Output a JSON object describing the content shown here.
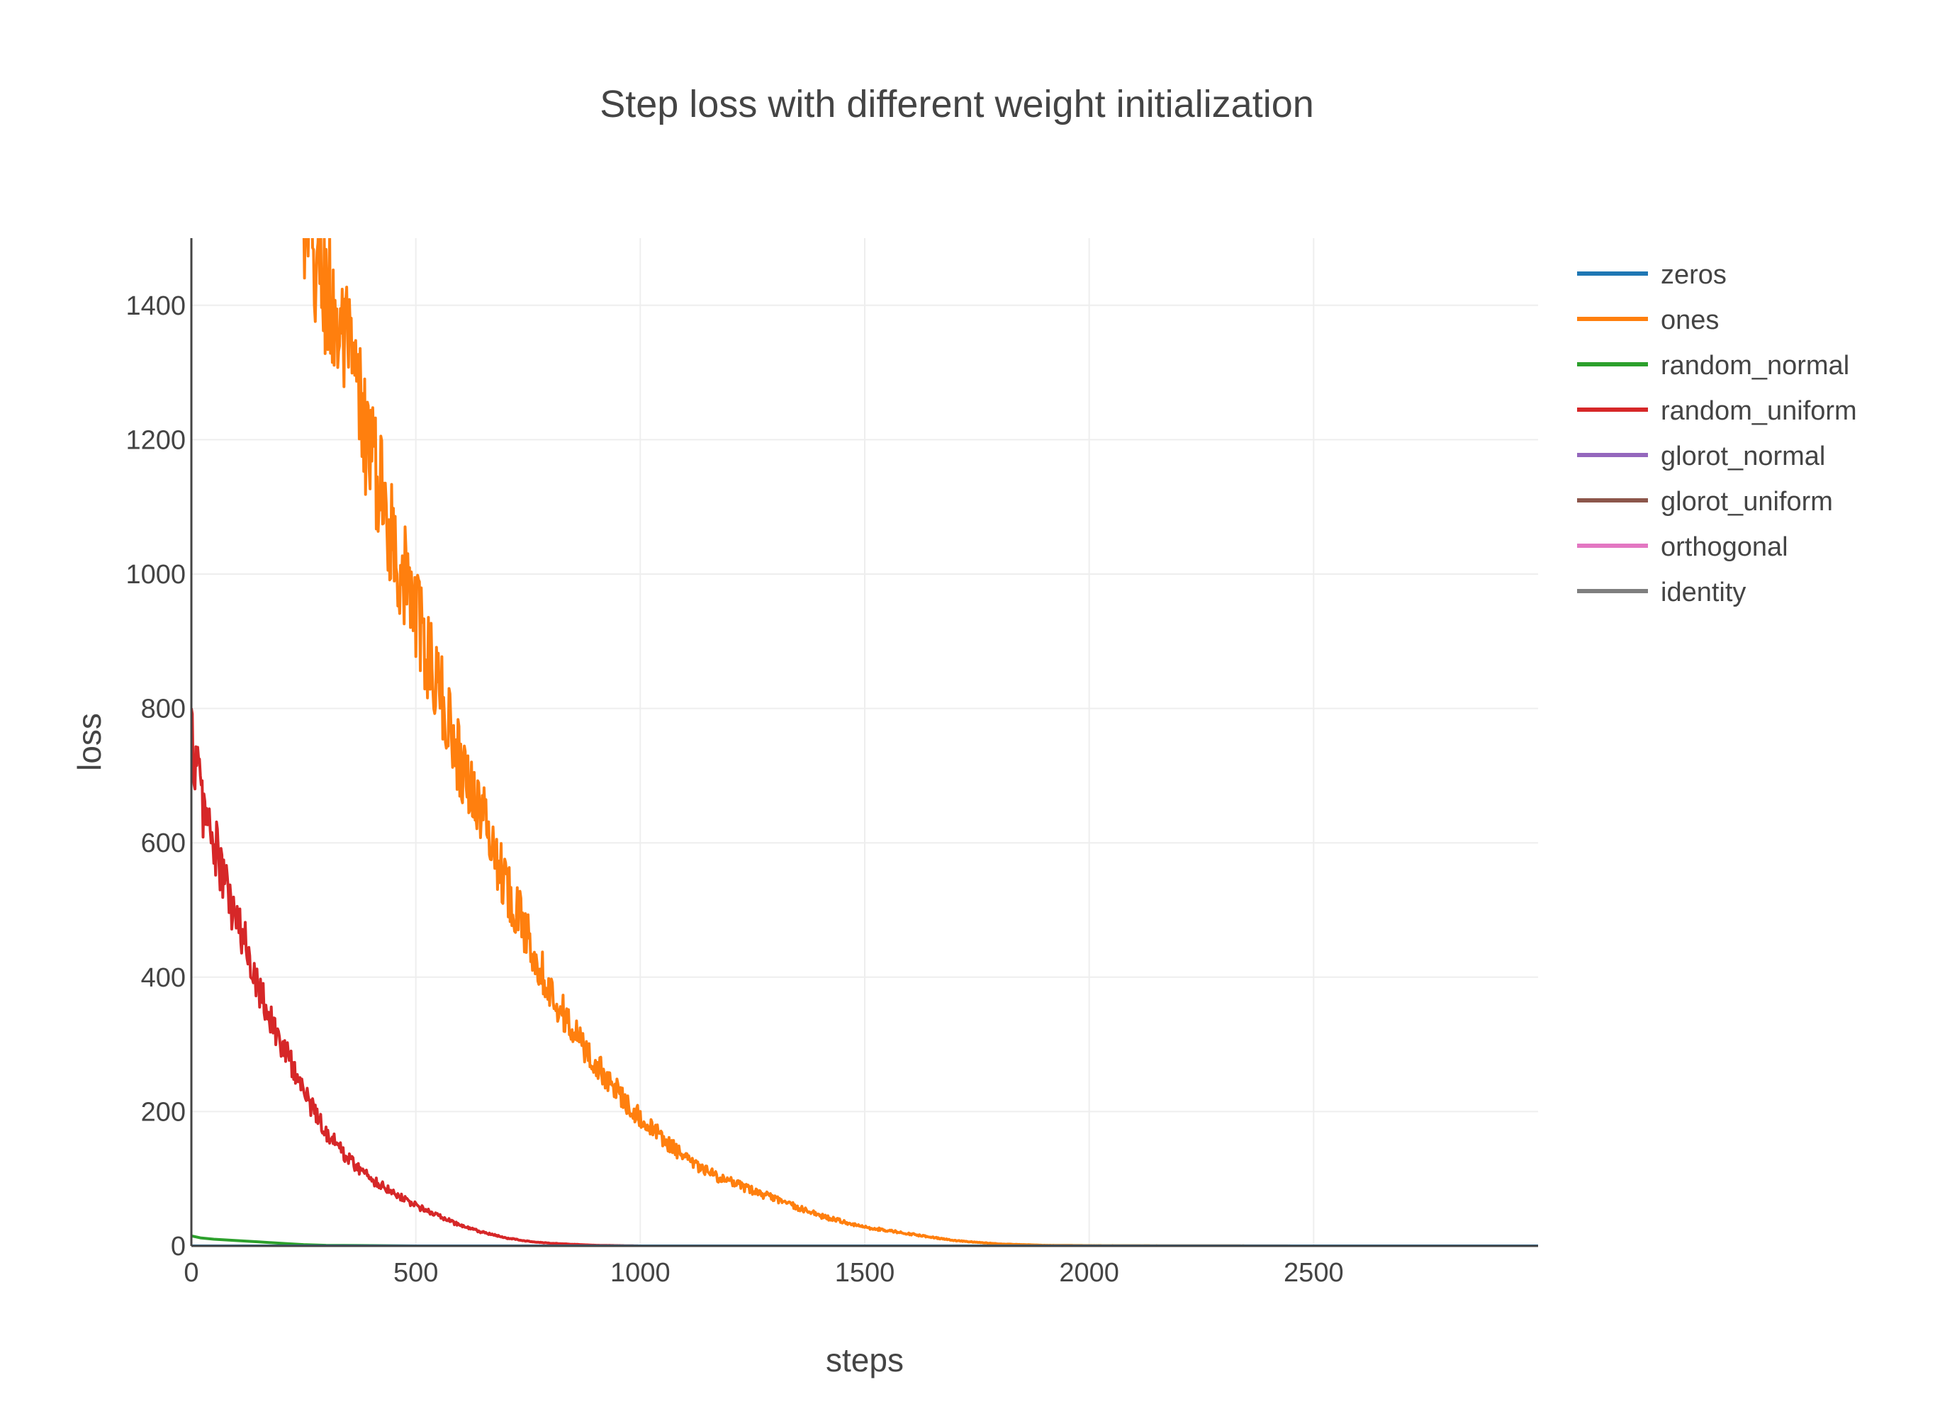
{
  "chart_data": {
    "type": "line",
    "title": "Step loss with different weight initialization",
    "xlabel": "steps",
    "ylabel": "loss",
    "xlim": [
      0,
      3000
    ],
    "ylim": [
      0,
      1500
    ],
    "x_ticks": [
      0,
      500,
      1000,
      1500,
      2000,
      2500
    ],
    "y_ticks": [
      0,
      200,
      400,
      600,
      800,
      1000,
      1200,
      1400
    ],
    "grid": true,
    "legend_position": "top-right",
    "series": [
      {
        "name": "zeros",
        "color": "#1f77b4",
        "x": [
          0,
          3000
        ],
        "y": [
          0,
          0
        ]
      },
      {
        "name": "ones",
        "color": "#ff7f0e",
        "x": [
          250,
          300,
          350,
          400,
          450,
          500,
          550,
          600,
          650,
          700,
          750,
          800,
          850,
          900,
          950,
          1000,
          1050,
          1100,
          1150,
          1200,
          1300,
          1400,
          1500,
          1600,
          1700,
          1800,
          1900,
          2000,
          2500,
          3000
        ],
        "y": [
          1500,
          1420,
          1320,
          1180,
          1050,
          940,
          830,
          720,
          640,
          540,
          460,
          380,
          320,
          270,
          230,
          190,
          160,
          130,
          110,
          95,
          70,
          45,
          28,
          18,
          8,
          3,
          1,
          0.5,
          0,
          0
        ],
        "noise": 0.08
      },
      {
        "name": "random_normal",
        "color": "#2ca02c",
        "x": [
          0,
          20,
          50,
          100,
          150,
          200,
          250,
          300,
          400,
          500,
          3000
        ],
        "y": [
          15,
          12,
          10,
          8,
          6,
          4,
          2,
          1,
          0.5,
          0,
          0
        ]
      },
      {
        "name": "random_uniform",
        "color": "#d62728",
        "x": [
          0,
          25,
          50,
          75,
          100,
          125,
          150,
          175,
          200,
          225,
          250,
          275,
          300,
          325,
          350,
          400,
          450,
          500,
          550,
          600,
          650,
          700,
          750,
          800,
          900,
          1000,
          3000
        ],
        "y": [
          760,
          660,
          600,
          540,
          480,
          440,
          390,
          340,
          300,
          270,
          230,
          200,
          170,
          150,
          130,
          100,
          80,
          60,
          45,
          30,
          20,
          12,
          7,
          4,
          1,
          0,
          0
        ],
        "noise": 0.08
      },
      {
        "name": "glorot_normal",
        "color": "#9467bd",
        "x": [
          0,
          3000
        ],
        "y": [
          0,
          0
        ]
      },
      {
        "name": "glorot_uniform",
        "color": "#8c564b",
        "x": [
          0,
          3000
        ],
        "y": [
          0,
          0
        ]
      },
      {
        "name": "orthogonal",
        "color": "#e377c2",
        "x": [
          0,
          3000
        ],
        "y": [
          0,
          0
        ]
      },
      {
        "name": "identity",
        "color": "#7f7f7f",
        "x": [
          0,
          3000
        ],
        "y": [
          0,
          0
        ]
      }
    ]
  }
}
